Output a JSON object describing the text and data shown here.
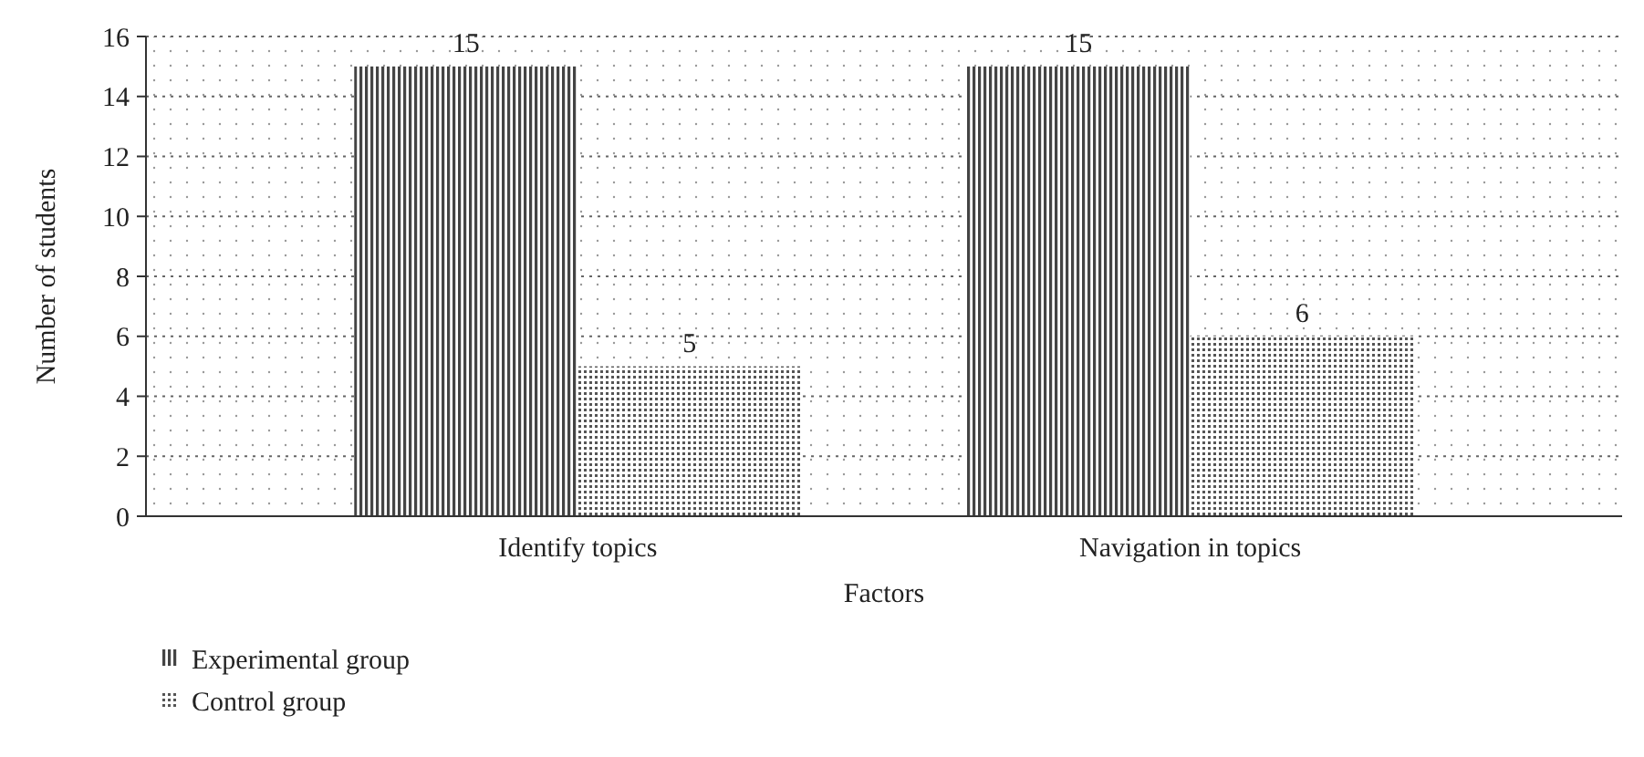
{
  "chart_data": {
    "type": "bar",
    "xlabel": "Factors",
    "ylabel": "Number of students",
    "categories": [
      "Identify topics",
      "Navigation in topics"
    ],
    "series": [
      {
        "name": "Experimental group",
        "color": "#444444",
        "values": [
          15,
          15
        ]
      },
      {
        "name": "Control group",
        "color": "#555555",
        "values": [
          5,
          6
        ]
      }
    ],
    "ylim": [
      0,
      16
    ],
    "yticks": [
      0,
      2,
      4,
      6,
      8,
      10,
      12,
      14,
      16
    ],
    "grid": "y",
    "legend": "bottom left",
    "data_labels": true
  }
}
